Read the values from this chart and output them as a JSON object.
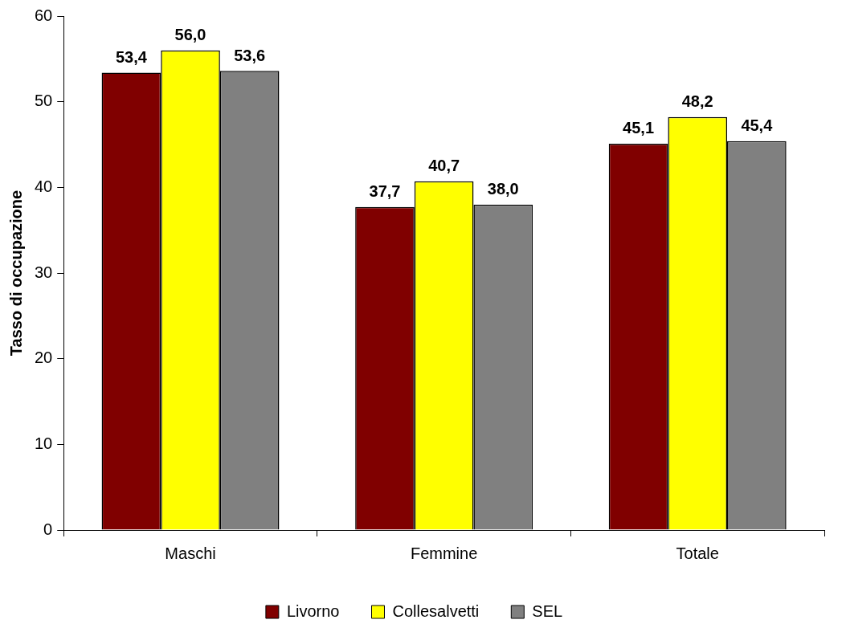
{
  "chart_data": {
    "type": "bar",
    "ylabel": "Tasso di occupazione",
    "categories": [
      "Maschi",
      "Femmine",
      "Totale"
    ],
    "series": [
      {
        "name": "Livorno",
        "color": "#800000",
        "values": [
          53.4,
          37.7,
          45.1
        ],
        "value_labels": [
          "53,4",
          "37,7",
          "45,1"
        ]
      },
      {
        "name": "Collesalvetti",
        "color": "#ffff00",
        "values": [
          56.0,
          40.7,
          48.2
        ],
        "value_labels": [
          "56,0",
          "40,7",
          "48,2"
        ]
      },
      {
        "name": "SEL",
        "color": "#808080",
        "values": [
          53.6,
          38.0,
          45.4
        ],
        "value_labels": [
          "53,6",
          "38,0",
          "45,4"
        ]
      }
    ],
    "ylim": [
      0,
      60
    ],
    "yticks": [
      0,
      10,
      20,
      30,
      40,
      50,
      60
    ],
    "grid": false,
    "legend": "bottom"
  }
}
